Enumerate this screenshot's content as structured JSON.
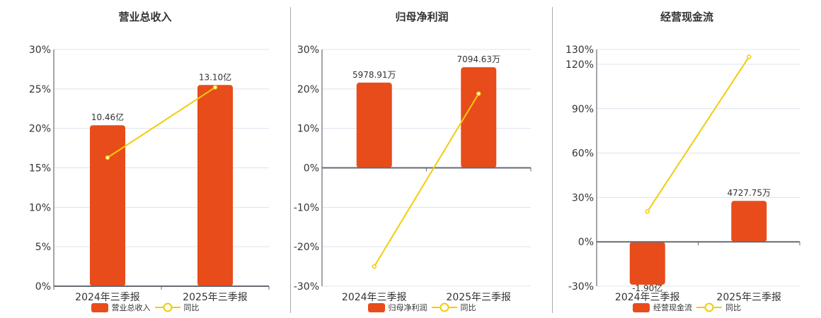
{
  "colors": {
    "bar": "#E84C1A",
    "line": "#F2CC0C",
    "grid": "#dde3ee",
    "axis": "#666a72",
    "text": "#333333"
  },
  "legend_line_label": "同比",
  "chart_data": [
    {
      "type": "bar+line",
      "title": "营业总收入",
      "categories": [
        "2024年三季报",
        "2025年三季报"
      ],
      "bar_series": {
        "name": "营业总收入",
        "values_pct_axis": [
          20.4,
          25.5
        ],
        "labels": [
          "10.46亿",
          "13.10亿"
        ]
      },
      "line_series": {
        "name": "同比",
        "values": [
          16.3,
          25.2
        ]
      },
      "yticks": [
        "30%",
        "25%",
        "20%",
        "15%",
        "10%",
        "5%",
        "0%"
      ],
      "ylim": [
        0,
        30
      ]
    },
    {
      "type": "bar+line",
      "title": "归母净利润",
      "categories": [
        "2024年三季报",
        "2025年三季报"
      ],
      "bar_series": {
        "name": "归母净利润",
        "values_pct_axis": [
          21.6,
          25.5
        ],
        "labels": [
          "5978.91万",
          "7094.63万"
        ]
      },
      "line_series": {
        "name": "同比",
        "values": [
          -25.0,
          18.8
        ]
      },
      "yticks": [
        "30%",
        "20%",
        "10%",
        "0%",
        "-10%",
        "-20%",
        "-30%"
      ],
      "ylim": [
        -30,
        30
      ]
    },
    {
      "type": "bar+line",
      "title": "经营现金流",
      "categories": [
        "2024年三季报",
        "2025年三季报"
      ],
      "bar_series": {
        "name": "经营现金流",
        "values_pct_axis": [
          -29.0,
          27.7
        ],
        "labels": [
          "-1.90亿",
          "4727.75万"
        ]
      },
      "line_series": {
        "name": "同比",
        "values": [
          20.5,
          125.0
        ]
      },
      "yticks": [
        "130%",
        "120%",
        "90%",
        "60%",
        "30%",
        "0%",
        "-30%"
      ],
      "ylim": [
        -30,
        130
      ]
    }
  ]
}
